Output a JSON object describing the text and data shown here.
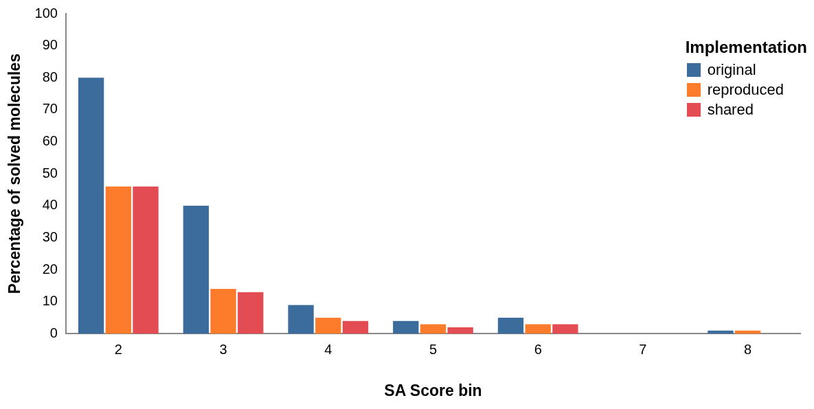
{
  "chart_data": {
    "type": "bar",
    "xlabel": "SA Score bin",
    "ylabel": "Percentage of solved molecules",
    "legend_title": "Implementation",
    "legend": "top right",
    "grid": false,
    "categories": [
      "2",
      "3",
      "4",
      "5",
      "6",
      "7",
      "8"
    ],
    "series": [
      {
        "name": "original",
        "color": "#3c6c9c",
        "values": [
          80,
          40,
          9,
          4,
          5,
          0,
          1
        ]
      },
      {
        "name": "reproduced",
        "color": "#fc7c2c",
        "values": [
          46,
          14,
          5,
          3,
          3,
          0,
          1
        ]
      },
      {
        "name": "shared",
        "color": "#e44c54",
        "values": [
          46,
          13,
          4,
          2,
          3,
          0,
          0
        ]
      }
    ],
    "ylim": [
      0,
      100
    ],
    "yticks": [
      0,
      10,
      20,
      30,
      40,
      50,
      60,
      70,
      80,
      90,
      100
    ]
  }
}
